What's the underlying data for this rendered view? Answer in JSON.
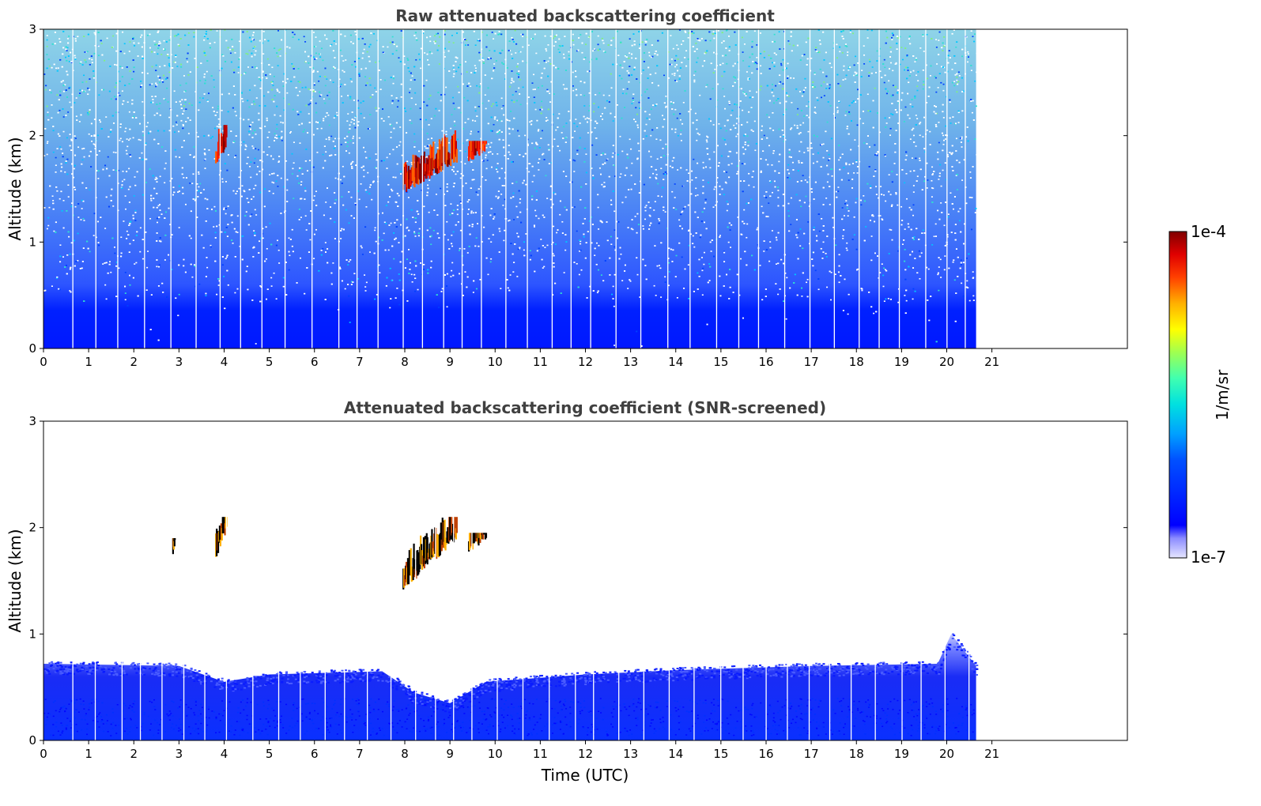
{
  "chart_data": [
    {
      "type": "heatmap",
      "title": "Raw attenuated backscattering coefficient",
      "xlabel": "",
      "ylabel": "Altitude (km)",
      "xlim": [
        0,
        24
      ],
      "ylim": [
        0,
        3
      ],
      "x_ticks": [
        "0",
        "1",
        "2",
        "3",
        "4",
        "5",
        "6",
        "7",
        "8",
        "9",
        "10",
        "11",
        "12",
        "13",
        "14",
        "15",
        "16",
        "17",
        "18",
        "19",
        "20",
        "21"
      ],
      "y_ticks": [
        "0",
        "1",
        "2",
        "3"
      ],
      "data_end_time": 20.65,
      "features": [
        {
          "kind": "noisy-background",
          "from_altitude": 0.6,
          "to_altitude": 3.0
        },
        {
          "kind": "boundary-layer",
          "from_altitude": 0.0,
          "to_altitude": 0.5
        },
        {
          "kind": "cloud",
          "time": [
            3.8,
            4.05
          ],
          "altitude": [
            1.7,
            2.1
          ]
        },
        {
          "kind": "cloud",
          "time": [
            7.95,
            9.15
          ],
          "altitude": [
            1.45,
            2.05
          ]
        },
        {
          "kind": "cloud",
          "time": [
            9.4,
            9.8
          ],
          "altitude": [
            1.75,
            1.95
          ]
        }
      ]
    },
    {
      "type": "heatmap",
      "title": "Attenuated backscattering coefficient (SNR-screened)",
      "xlabel": "Time (UTC)",
      "ylabel": "Altitude (km)",
      "xlim": [
        0,
        24
      ],
      "ylim": [
        0,
        3
      ],
      "x_ticks": [
        "0",
        "1",
        "2",
        "3",
        "4",
        "5",
        "6",
        "7",
        "8",
        "9",
        "10",
        "11",
        "12",
        "13",
        "14",
        "15",
        "16",
        "17",
        "18",
        "19",
        "20",
        "21"
      ],
      "y_ticks": [
        "0",
        "1",
        "2",
        "3"
      ],
      "data_end_time": 20.65,
      "boundary_layer_top": [
        {
          "time": 0,
          "altitude": 0.72
        },
        {
          "time": 3,
          "altitude": 0.7
        },
        {
          "time": 4,
          "altitude": 0.55
        },
        {
          "time": 5,
          "altitude": 0.62
        },
        {
          "time": 7.5,
          "altitude": 0.65
        },
        {
          "time": 8.2,
          "altitude": 0.45
        },
        {
          "time": 9,
          "altitude": 0.35
        },
        {
          "time": 9.8,
          "altitude": 0.55
        },
        {
          "time": 12,
          "altitude": 0.62
        },
        {
          "time": 14,
          "altitude": 0.66
        },
        {
          "time": 17,
          "altitude": 0.7
        },
        {
          "time": 19.8,
          "altitude": 0.72
        },
        {
          "time": 20.1,
          "altitude": 1.0
        },
        {
          "time": 20.65,
          "altitude": 0.7
        }
      ],
      "features": [
        {
          "kind": "cloud",
          "time": [
            2.85,
            2.9
          ],
          "altitude": [
            1.72,
            1.9
          ]
        },
        {
          "kind": "cloud",
          "time": [
            3.8,
            4.05
          ],
          "altitude": [
            1.7,
            2.1
          ]
        },
        {
          "kind": "cloud",
          "time": [
            7.95,
            9.15
          ],
          "altitude": [
            1.4,
            2.1
          ]
        },
        {
          "kind": "cloud",
          "time": [
            9.4,
            9.8
          ],
          "altitude": [
            1.75,
            1.95
          ]
        }
      ]
    }
  ],
  "colorbar": {
    "label": "1/m/sr",
    "max_label": "1e-4",
    "min_label": "1e-7",
    "scale": "log",
    "range": [
      1e-07,
      0.0001
    ],
    "colormap": "jet"
  }
}
